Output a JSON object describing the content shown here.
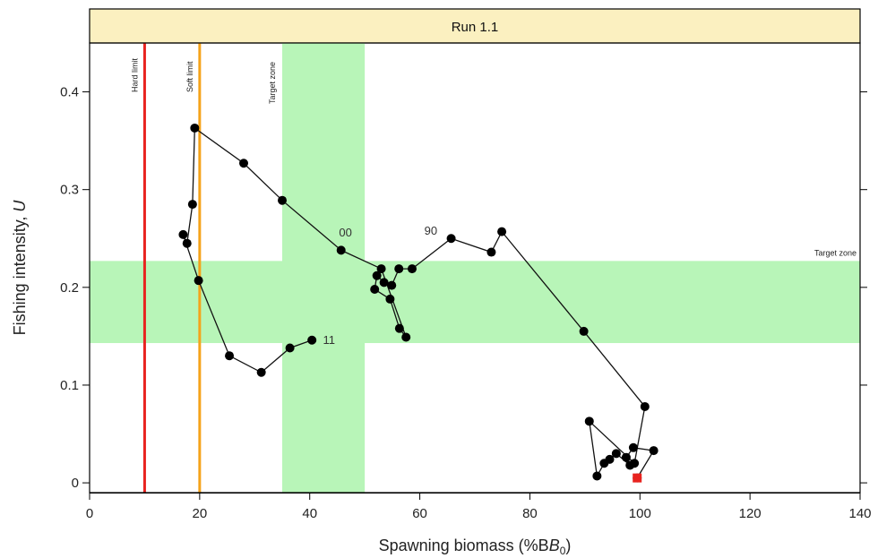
{
  "chart_data": {
    "type": "line",
    "title": "Run 1.1",
    "xlabel": "Spawning biomass (%B",
    "xlabel_sub": "0",
    "xlabel_end": ")",
    "ylabel": "Fishing intensity, ",
    "ylabel_italic": "U",
    "xlim": [
      0,
      140
    ],
    "ylim": [
      -0.01,
      0.45
    ],
    "x_ticks": [
      0,
      20,
      40,
      60,
      80,
      100,
      120,
      140
    ],
    "y_ticks": [
      0,
      0.1,
      0.2,
      0.3,
      0.4
    ],
    "y_tick_labels": [
      "0",
      "0.1",
      "0.2",
      "0.3",
      "0.4"
    ],
    "reference_lines": [
      {
        "label": "Hard limit",
        "x": 10,
        "color": "#e8231f"
      },
      {
        "label": "Soft limit",
        "x": 20,
        "color": "#f5a31a"
      }
    ],
    "target_zone_x": {
      "label": "Target zone",
      "range": [
        35,
        50
      ],
      "color": "#b8f5b8"
    },
    "target_zone_y": {
      "label": "Target zone",
      "range": [
        0.143,
        0.227
      ],
      "color": "#b8f5b8"
    },
    "series": [
      {
        "x": [
          99.5,
          102.5,
          98.8,
          97.5,
          98.2,
          95.7,
          94.5,
          93.5,
          92.2,
          90.8,
          99.0,
          100.9,
          89.8,
          74.9,
          73.0,
          65.7,
          58.6,
          56.2,
          54.9,
          53.5,
          52.2,
          51.8,
          54.6,
          56.3,
          57.5,
          53.0,
          45.7,
          35.0,
          28.0,
          19.1,
          18.7,
          17.7,
          17.0,
          19.8,
          25.4,
          31.2,
          36.4,
          40.4
        ],
        "y": [
          0.005,
          0.033,
          0.036,
          0.026,
          0.018,
          0.03,
          0.024,
          0.02,
          0.007,
          0.063,
          0.02,
          0.078,
          0.155,
          0.257,
          0.236,
          0.25,
          0.219,
          0.219,
          0.202,
          0.205,
          0.212,
          0.198,
          0.188,
          0.158,
          0.149,
          0.219,
          0.238,
          0.289,
          0.327,
          0.363,
          0.285,
          0.245,
          0.254,
          0.207,
          0.13,
          0.113,
          0.138,
          0.146
        ]
      }
    ],
    "start_marker": {
      "x": 99.5,
      "y": 0.005,
      "color": "#e8231f"
    },
    "annotations": [
      {
        "text": "00",
        "x": 46.5,
        "y": 0.252
      },
      {
        "text": "90",
        "x": 62,
        "y": 0.254
      },
      {
        "text": "11",
        "x": 43.5,
        "y": 0.142
      }
    ],
    "colors": {
      "strip": "#fbf0c0",
      "line": "#111111",
      "points": "#000000"
    }
  }
}
